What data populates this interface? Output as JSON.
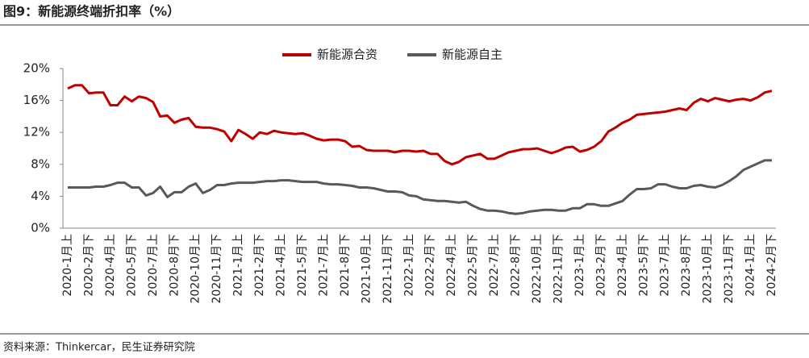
{
  "title": "图9：新能源终端折扣率（%）",
  "source": "资料来源：Thinkercar，民生证券研究院",
  "chart_data": {
    "type": "line",
    "categories": [
      "2020-1月上",
      null,
      null,
      "2020-2月下",
      null,
      null,
      "2020-4月上",
      null,
      null,
      "2020-5月下",
      null,
      null,
      "2020-7月上",
      null,
      null,
      "2020-8月下",
      null,
      null,
      "2020-10月上",
      null,
      null,
      "2020-11月下",
      null,
      null,
      "2021-1月上",
      null,
      null,
      "2021-2月下",
      null,
      null,
      "2021-4月上",
      null,
      null,
      "2021-5月下",
      null,
      null,
      "2021-7月上",
      null,
      null,
      "2021-8月下",
      null,
      null,
      "2021-10月上",
      null,
      null,
      "2021-11月下",
      null,
      null,
      "2022-1月上",
      null,
      null,
      "2022-2月下",
      null,
      null,
      "2022-4月上",
      null,
      null,
      "2022-5月下",
      null,
      null,
      "2022-7月上",
      null,
      null,
      "2022-8月下",
      null,
      null,
      "2022-10月上",
      null,
      null,
      "2022-11月下",
      null,
      null,
      "2023-1月上",
      null,
      null,
      "2023-2月下",
      null,
      null,
      "2023-4月上",
      null,
      null,
      "2023-5月下",
      null,
      null,
      "2023-7月上",
      null,
      null,
      "2023-8月下",
      null,
      null,
      "2023-10月上",
      null,
      null,
      "2023-11月下",
      null,
      null,
      "2024-1月上",
      null,
      null,
      "2024-2月下"
    ],
    "series": [
      {
        "name": "新能源合资",
        "color": "#c00000",
        "values": [
          17.5,
          17.9,
          17.9,
          16.9,
          17.0,
          17.0,
          15.4,
          15.4,
          16.5,
          15.9,
          16.5,
          16.3,
          15.8,
          14.0,
          14.1,
          13.2,
          13.6,
          13.8,
          12.7,
          12.6,
          12.6,
          12.4,
          12.1,
          10.9,
          12.3,
          11.8,
          11.2,
          12.0,
          11.8,
          12.2,
          12.0,
          11.9,
          11.8,
          11.9,
          11.6,
          11.2,
          11.0,
          11.1,
          11.1,
          10.9,
          10.2,
          10.3,
          9.8,
          9.7,
          9.7,
          9.7,
          9.5,
          9.7,
          9.7,
          9.6,
          9.7,
          9.3,
          9.3,
          8.4,
          8.0,
          8.3,
          8.9,
          9.1,
          9.3,
          8.7,
          8.7,
          9.1,
          9.5,
          9.7,
          9.9,
          9.9,
          10.0,
          9.7,
          9.4,
          9.7,
          10.1,
          10.2,
          9.6,
          9.8,
          10.2,
          10.9,
          12.1,
          12.6,
          13.2,
          13.6,
          14.2,
          14.3,
          14.4,
          14.5,
          14.6,
          14.8,
          15.0,
          14.8,
          15.7,
          16.2,
          15.9,
          16.3,
          16.1,
          15.9,
          16.1,
          16.2,
          16.0,
          16.4,
          17.0,
          17.2
        ]
      },
      {
        "name": "新能源自主",
        "color": "#595959",
        "values": [
          5.1,
          5.1,
          5.1,
          5.1,
          5.2,
          5.2,
          5.4,
          5.7,
          5.7,
          5.1,
          5.1,
          4.1,
          4.4,
          5.2,
          3.9,
          4.5,
          4.5,
          5.2,
          5.6,
          4.4,
          4.8,
          5.4,
          5.4,
          5.6,
          5.7,
          5.7,
          5.7,
          5.8,
          5.9,
          5.9,
          6.0,
          6.0,
          5.9,
          5.8,
          5.8,
          5.8,
          5.6,
          5.5,
          5.5,
          5.4,
          5.3,
          5.1,
          5.1,
          5.0,
          4.8,
          4.6,
          4.6,
          4.5,
          4.1,
          4.0,
          3.6,
          3.5,
          3.4,
          3.4,
          3.3,
          3.2,
          3.3,
          2.8,
          2.4,
          2.2,
          2.2,
          2.1,
          1.9,
          1.8,
          1.9,
          2.1,
          2.2,
          2.3,
          2.3,
          2.2,
          2.2,
          2.5,
          2.5,
          3.0,
          3.0,
          2.8,
          2.8,
          3.1,
          3.4,
          4.2,
          4.9,
          4.9,
          5.0,
          5.5,
          5.5,
          5.2,
          5.0,
          5.0,
          5.3,
          5.4,
          5.2,
          5.1,
          5.4,
          5.9,
          6.5,
          7.3,
          7.7,
          8.1,
          8.5,
          8.5
        ]
      }
    ],
    "ylim": [
      0,
      20
    ],
    "yticks": [
      {
        "value": 0,
        "label": "0%"
      },
      {
        "value": 4,
        "label": "4%"
      },
      {
        "value": 8,
        "label": "8%"
      },
      {
        "value": 12,
        "label": "12%"
      },
      {
        "value": 16,
        "label": "16%"
      },
      {
        "value": 20,
        "label": "20%"
      }
    ],
    "grid": false
  }
}
